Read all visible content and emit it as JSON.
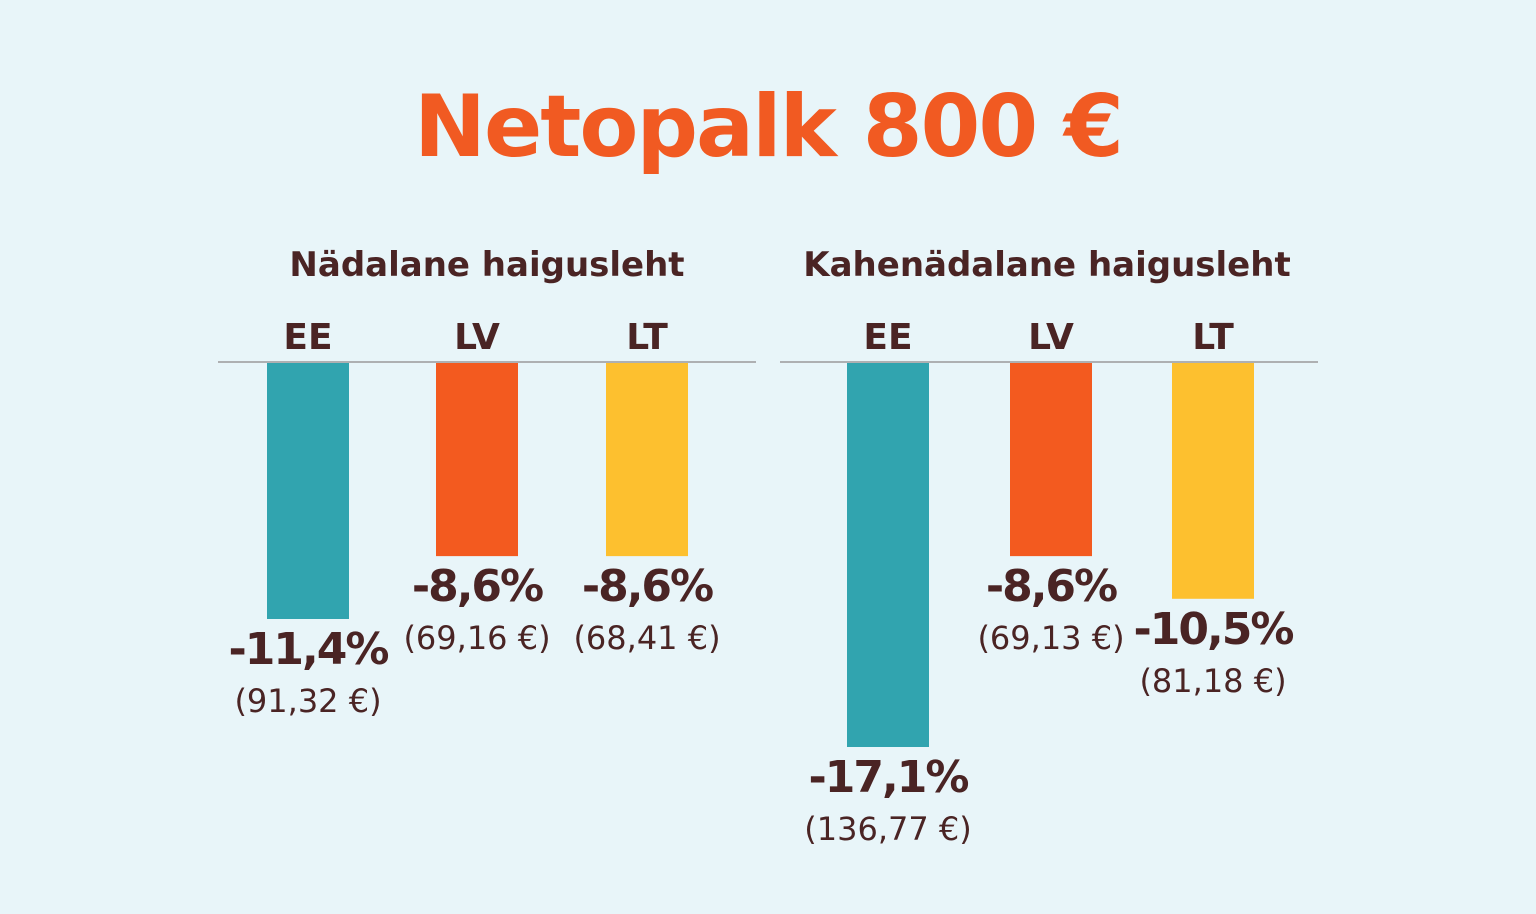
{
  "title": "Netopalk 800 €",
  "colors": {
    "background": "#e8f5f9",
    "title": "#f15a22",
    "text": "#4a2424",
    "EE": "#31a4af",
    "LV": "#f35a1f",
    "LT": "#fdc02f",
    "baseline": "#9a9a9a"
  },
  "chart_data": [
    {
      "type": "bar",
      "title": "Nädalane haigusleht",
      "categories": [
        "EE",
        "LV",
        "LT"
      ],
      "values": [
        -11.4,
        -8.6,
        -8.6
      ],
      "value_labels": [
        "-11,4%",
        "-8,6%",
        "-8,6%"
      ],
      "amount_labels": [
        "(91,32 €)",
        "(69,16 €)",
        "(68,41 €)"
      ],
      "ylim": [
        -17.1,
        0
      ]
    },
    {
      "type": "bar",
      "title": "Kahenädalane haigusleht",
      "categories": [
        "EE",
        "LV",
        "LT"
      ],
      "values": [
        -17.1,
        -8.6,
        -10.5
      ],
      "value_labels": [
        "-17,1%",
        "-8,6%",
        "-10,5%"
      ],
      "amount_labels": [
        "(136,77 €)",
        "(69,13 €)",
        "(81,18 €)"
      ],
      "ylim": [
        -17.1,
        0
      ]
    }
  ]
}
